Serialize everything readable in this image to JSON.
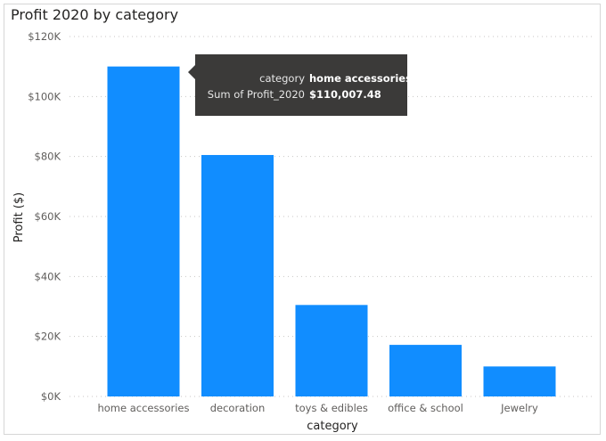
{
  "chart_data": {
    "type": "bar",
    "title": "Profit 2020 by category",
    "xlabel": "category",
    "ylabel": "Profit ($)",
    "categories": [
      "home accessories",
      "decoration",
      "toys & edibles",
      "office & school",
      "Jewelry"
    ],
    "values": [
      110007.48,
      80500,
      30500,
      17200,
      10000
    ],
    "ylim": [
      0,
      120000
    ],
    "yticks": [
      0,
      20000,
      40000,
      60000,
      80000,
      100000,
      120000
    ],
    "ytick_labels": [
      "$0K",
      "$20K",
      "$40K",
      "$60K",
      "$80K",
      "$100K",
      "$120K"
    ],
    "bar_color": "#118DFF",
    "grid": true
  },
  "tooltip": {
    "rows": [
      {
        "key": "category",
        "value": "home accessories"
      },
      {
        "key": "Sum of Profit_2020",
        "value": "$110,007.48"
      }
    ]
  }
}
